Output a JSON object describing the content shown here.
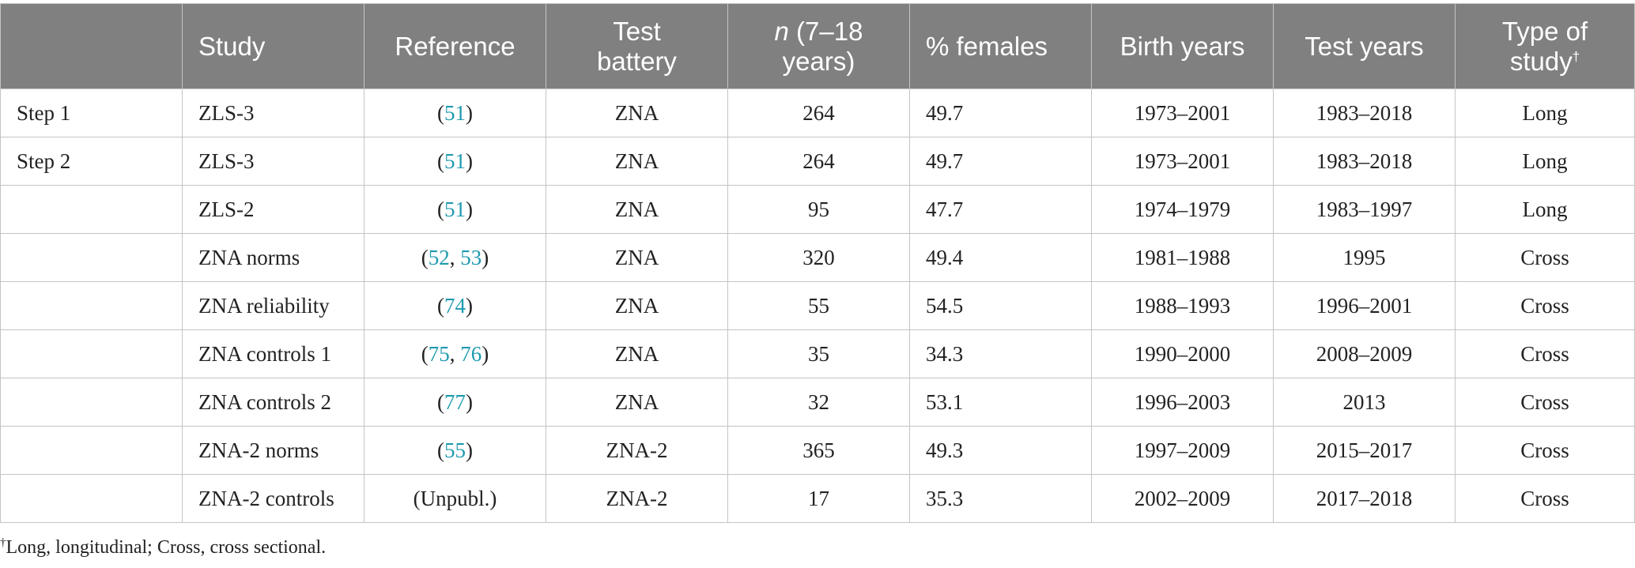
{
  "table": {
    "headers": {
      "step": "",
      "study": "Study",
      "reference": "Reference",
      "test_battery_line1": "Test",
      "test_battery_line2": "battery",
      "n_italic": "n",
      "n_rest_line1": " (7–18",
      "n_line2": "years)",
      "females": "% females",
      "birth_years": "Birth years",
      "test_years": "Test years",
      "type_line1": "Type of",
      "type_line2": "study",
      "type_mark": "†"
    },
    "rows": [
      {
        "step": "Step 1",
        "study": "ZLS-3",
        "ref": [
          {
            "t": "(",
            "link": false
          },
          {
            "t": "51",
            "link": true
          },
          {
            "t": ")",
            "link": false
          }
        ],
        "battery": "ZNA",
        "n": "264",
        "females": "49.7",
        "birth": "1973–2001",
        "test": "1983–2018",
        "type": "Long"
      },
      {
        "step": "Step 2",
        "study": "ZLS-3",
        "ref": [
          {
            "t": "(",
            "link": false
          },
          {
            "t": "51",
            "link": true
          },
          {
            "t": ")",
            "link": false
          }
        ],
        "battery": "ZNA",
        "n": "264",
        "females": "49.7",
        "birth": "1973–2001",
        "test": "1983–2018",
        "type": "Long"
      },
      {
        "step": "",
        "study": "ZLS-2",
        "ref": [
          {
            "t": "(",
            "link": false
          },
          {
            "t": "51",
            "link": true
          },
          {
            "t": ")",
            "link": false
          }
        ],
        "battery": "ZNA",
        "n": "95",
        "females": "47.7",
        "birth": "1974–1979",
        "test": "1983–1997",
        "type": "Long"
      },
      {
        "step": "",
        "study": "ZNA norms",
        "ref": [
          {
            "t": "(",
            "link": false
          },
          {
            "t": "52",
            "link": true
          },
          {
            "t": ", ",
            "link": false
          },
          {
            "t": "53",
            "link": true
          },
          {
            "t": ")",
            "link": false
          }
        ],
        "battery": "ZNA",
        "n": "320",
        "females": "49.4",
        "birth": "1981–1988",
        "test": "1995",
        "type": "Cross"
      },
      {
        "step": "",
        "study": "ZNA reliability",
        "ref": [
          {
            "t": "(",
            "link": false
          },
          {
            "t": "74",
            "link": true
          },
          {
            "t": ")",
            "link": false
          }
        ],
        "battery": "ZNA",
        "n": "55",
        "females": "54.5",
        "birth": "1988–1993",
        "test": "1996–2001",
        "type": "Cross"
      },
      {
        "step": "",
        "study": "ZNA controls 1",
        "ref": [
          {
            "t": "(",
            "link": false
          },
          {
            "t": "75",
            "link": true
          },
          {
            "t": ", ",
            "link": false
          },
          {
            "t": "76",
            "link": true
          },
          {
            "t": ")",
            "link": false
          }
        ],
        "battery": "ZNA",
        "n": "35",
        "females": "34.3",
        "birth": "1990–2000",
        "test": "2008–2009",
        "type": "Cross"
      },
      {
        "step": "",
        "study": "ZNA controls 2",
        "ref": [
          {
            "t": "(",
            "link": false
          },
          {
            "t": "77",
            "link": true
          },
          {
            "t": ")",
            "link": false
          }
        ],
        "battery": "ZNA",
        "n": "32",
        "females": "53.1",
        "birth": "1996–2003",
        "test": "2013",
        "type": "Cross"
      },
      {
        "step": "",
        "study": "ZNA-2 norms",
        "ref": [
          {
            "t": "(",
            "link": false
          },
          {
            "t": "55",
            "link": true
          },
          {
            "t": ")",
            "link": false
          }
        ],
        "battery": "ZNA-2",
        "n": "365",
        "females": "49.3",
        "birth": "1997–2009",
        "test": "2015–2017",
        "type": "Cross"
      },
      {
        "step": "",
        "study": "ZNA-2 controls",
        "ref": [
          {
            "t": "(Unpubl.)",
            "link": false
          }
        ],
        "battery": "ZNA-2",
        "n": "17",
        "females": "35.3",
        "birth": "2002–2009",
        "test": "2017–2018",
        "type": "Cross"
      }
    ]
  },
  "footnote": {
    "mark": "†",
    "text": "Long, longitudinal; Cross, cross sectional."
  },
  "colors": {
    "header_bg": "#808080",
    "header_text": "#ffffff",
    "link": "#1e9ab0",
    "border": "#c4c4c4"
  }
}
